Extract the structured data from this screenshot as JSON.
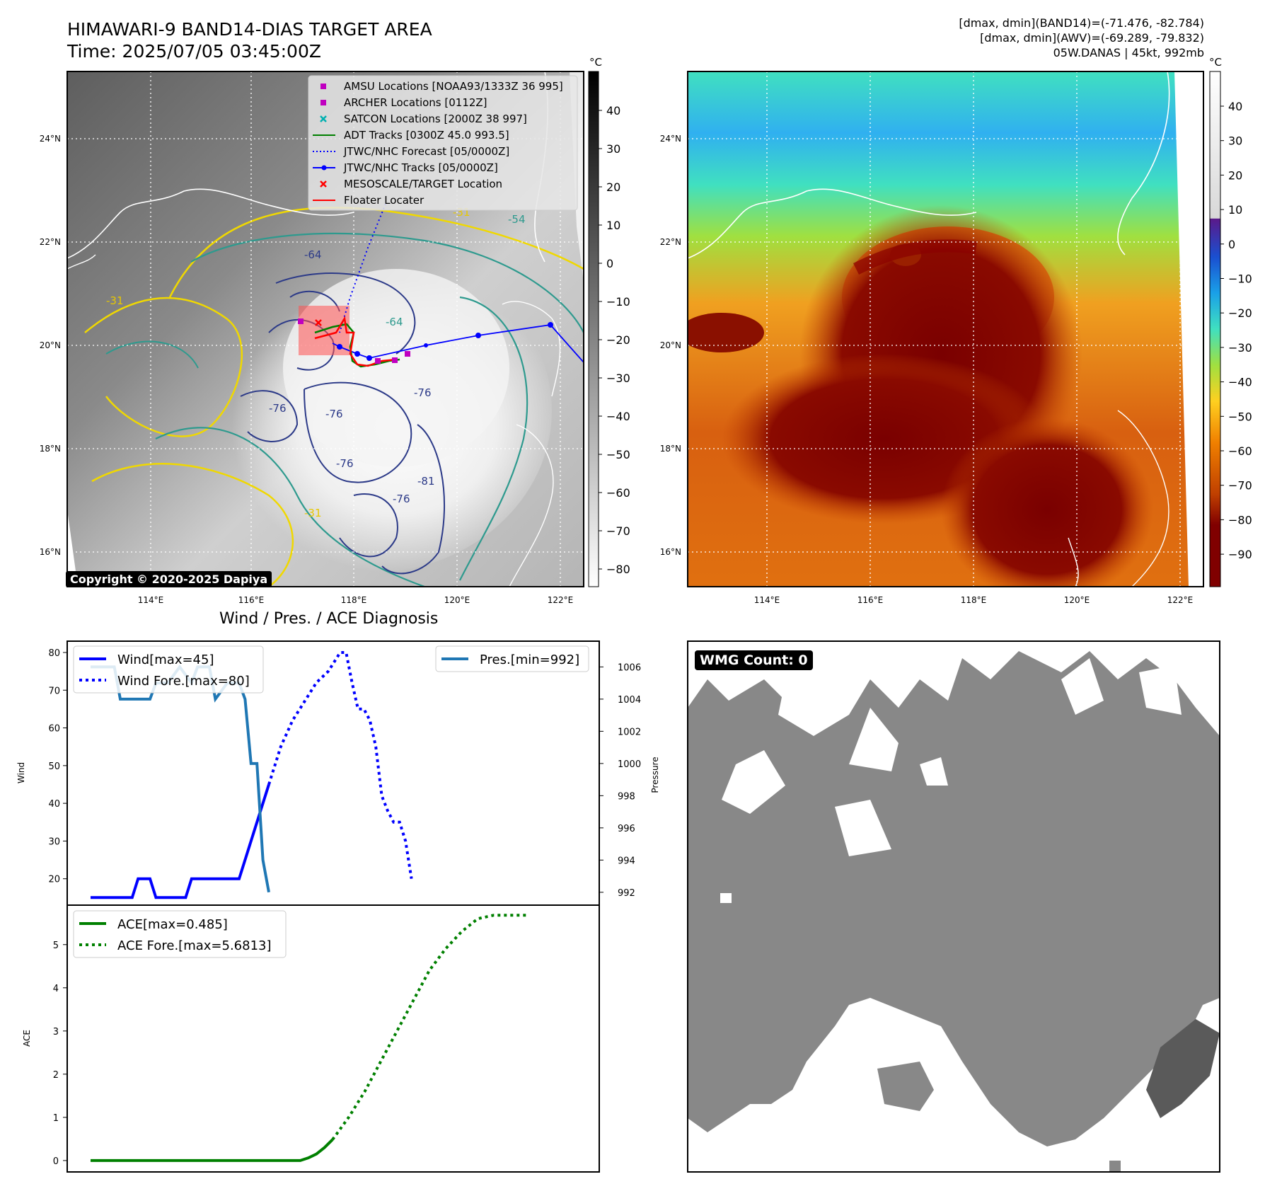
{
  "header": {
    "title_line1": "HIMAWARI-9 BAND14-DIAS TARGET AREA",
    "title_line2": "Time: 2025/07/05 03:45:00Z",
    "right_line1": "[dmax, dmin](BAND14)=(-71.476, -82.784)",
    "right_line2": "[dmax, dmin](AWV)=(-69.289, -79.832)",
    "right_line3": "05W.DANAS | 45kt, 992mb"
  },
  "map": {
    "lat_labels": [
      "24°N",
      "22°N",
      "20°N",
      "18°N",
      "16°N"
    ],
    "lon_labels": [
      "114°E",
      "116°E",
      "118°E",
      "120°E",
      "122°E"
    ],
    "copyright": "Copyright © 2020-2025 Dapiya",
    "legend": [
      {
        "label": "AMSU Locations [NOAA93/1333Z 36 995]",
        "color": "#c000c0",
        "marker": "square"
      },
      {
        "label": "ARCHER Locations [0112Z]",
        "color": "#c000c0",
        "marker": "square"
      },
      {
        "label": "SATCON Locations [2000Z 38 997]",
        "color": "#00b0b0",
        "marker": "x"
      },
      {
        "label": "ADT Tracks [0300Z 45.0 993.5]",
        "color": "#008000",
        "marker": "line"
      },
      {
        "label": "JTWC/NHC Forecast [05/0000Z]",
        "color": "#0000ff",
        "marker": "dotted"
      },
      {
        "label": "JTWC/NHC Tracks [05/0000Z]",
        "color": "#0000ff",
        "marker": "line-dot"
      },
      {
        "label": "MESOSCALE/TARGET Location",
        "color": "#ff0000",
        "marker": "x"
      },
      {
        "label": "Floater Locater",
        "color": "#ff0000",
        "marker": "line"
      }
    ],
    "contour_labels": [
      "-54",
      "-64",
      "-76",
      "-76",
      "-76",
      "-76",
      "-81",
      "-31",
      "-31",
      "-31",
      "-64",
      "-76"
    ],
    "left_colorbar": {
      "unit": "°C",
      "ticks": [
        "40",
        "30",
        "20",
        "10",
        "0",
        "−10",
        "−20",
        "−30",
        "−40",
        "−50",
        "−60",
        "−70",
        "−80"
      ]
    },
    "right_colorbar": {
      "unit": "°C",
      "ticks": [
        "40",
        "30",
        "20",
        "10",
        "0",
        "−10",
        "−20",
        "−30",
        "−40",
        "−50",
        "−60",
        "−70",
        "−80",
        "−90"
      ]
    }
  },
  "wmg": {
    "label": "WMG Count: 0"
  },
  "diagnosis_title": "Wind / Pres. / ACE Diagnosis",
  "chart_data": [
    {
      "type": "line",
      "ylabel": "Wind",
      "ylabel_right": "Pressure",
      "wind_ticks": [
        20,
        30,
        40,
        50,
        60,
        70,
        80
      ],
      "ylim_wind": [
        13,
        83
      ],
      "pres_ticks": [
        992,
        994,
        996,
        998,
        1000,
        1002,
        1004,
        1006
      ],
      "ylim_pres": [
        991.2,
        1007.6
      ],
      "x_count": 37,
      "series": [
        {
          "name": "Wind[max=45]",
          "axis": "wind",
          "color": "#0000ff",
          "style": "solid",
          "x": [
            0,
            7,
            8,
            10,
            11,
            16,
            17,
            25,
            30
          ],
          "values": [
            15,
            15,
            20,
            20,
            15,
            15,
            20,
            20,
            45
          ]
        },
        {
          "name": "Wind Fore.[max=80]",
          "axis": "wind",
          "color": "#0000ff",
          "style": "dotted",
          "x": [
            30,
            32,
            34,
            36,
            38,
            40,
            42,
            43,
            44,
            45,
            46,
            47,
            48,
            49,
            50,
            51,
            52,
            53,
            54
          ],
          "values": [
            45,
            55,
            62,
            67,
            72,
            75,
            80,
            80,
            72,
            65,
            65,
            62,
            55,
            42,
            38,
            35,
            35,
            30,
            20
          ]
        },
        {
          "name": "Pres.[min=992]",
          "axis": "pres",
          "color": "#1f77b4",
          "style": "solid",
          "x": [
            0,
            4,
            5,
            10,
            11,
            13,
            15,
            17,
            18,
            20,
            21,
            23,
            25,
            26,
            27,
            28,
            29,
            30
          ],
          "values": [
            1006,
            1006,
            1004,
            1004,
            1005,
            1005,
            1006,
            1005,
            1006,
            1006,
            1004,
            1005,
            1005,
            1004,
            1000,
            1000,
            994,
            992
          ]
        }
      ]
    },
    {
      "type": "line",
      "ylabel": "ACE",
      "ace_ticks": [
        0,
        1,
        2,
        3,
        4,
        5
      ],
      "ylim": [
        -0.1,
        5.75
      ],
      "series": [
        {
          "name": "ACE[max=0.485]",
          "color": "#008000",
          "style": "solid",
          "x": [
            0,
            26,
            27,
            28,
            29,
            30
          ],
          "values": [
            0,
            0,
            0.06,
            0.15,
            0.3,
            0.485
          ]
        },
        {
          "name": "ACE Fore.[max=5.6813]",
          "color": "#008000",
          "style": "dotted",
          "x": [
            30,
            32,
            34,
            36,
            38,
            40,
            42,
            44,
            46,
            48,
            50,
            52,
            54
          ],
          "values": [
            0.485,
            1.0,
            1.6,
            2.3,
            3.0,
            3.7,
            4.4,
            4.9,
            5.3,
            5.6,
            5.6813,
            5.6813,
            5.6813
          ]
        }
      ]
    }
  ]
}
